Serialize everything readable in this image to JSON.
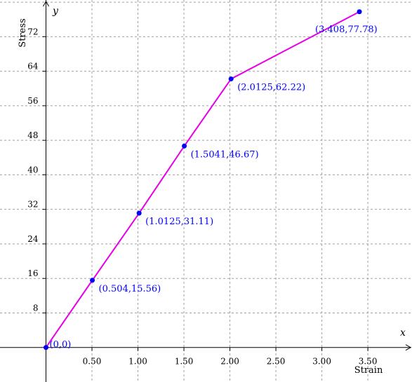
{
  "chart_data": {
    "type": "line",
    "xlabel": "Strain",
    "ylabel": "Stress",
    "x_axis_letter": "x",
    "y_axis_letter": "y",
    "xlim": [
      -0.5,
      3.98
    ],
    "ylim": [
      -8,
      80.5
    ],
    "x_ticks": [
      0.5,
      1.0,
      1.5,
      2.0,
      2.5,
      3.0,
      3.5
    ],
    "x_tick_labels": [
      "0.50",
      "1.00",
      "1.50",
      "2.00",
      "2.50",
      "3.00",
      "3.50"
    ],
    "y_ticks": [
      8,
      16,
      24,
      32,
      40,
      48,
      56,
      64,
      72
    ],
    "y_tick_labels": [
      "8",
      "16",
      "24",
      "32",
      "40",
      "48",
      "56",
      "64",
      "72"
    ],
    "grid": true,
    "series": [
      {
        "x": [
          0,
          0.504,
          1.0125,
          1.5041,
          2.0125,
          3.408
        ],
        "y": [
          0,
          15.56,
          31.11,
          46.67,
          62.22,
          77.78
        ]
      }
    ],
    "point_labels": [
      "(0,0)",
      "(0.504,15.56)",
      "(1.0125,31.11)",
      "(1.5041,46.67)",
      "(2.0125,62.22)",
      "(3.408,77.78)"
    ],
    "colors": {
      "line": "#e600e6",
      "points": "#0000ff",
      "point_labels": "#0000ff",
      "grid": "#a0a0a0",
      "axes": "#000000"
    }
  }
}
